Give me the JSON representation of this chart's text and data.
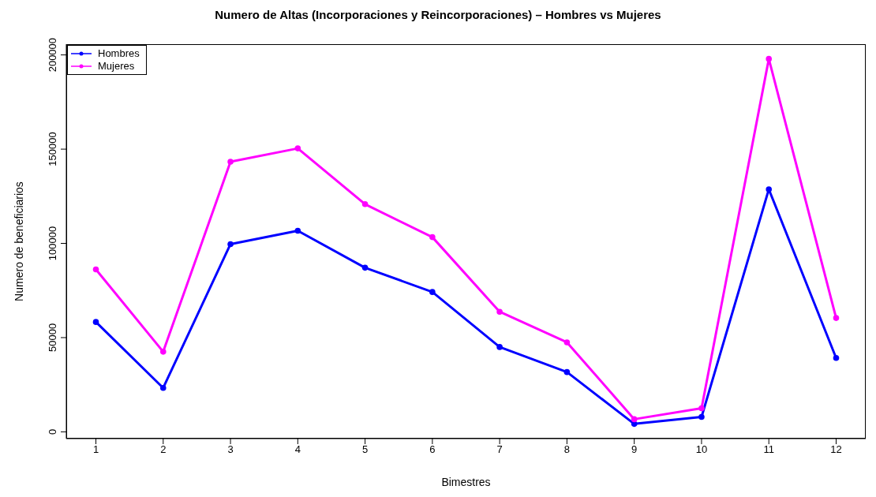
{
  "chart_data": {
    "type": "line",
    "title": "Numero de Altas (Incorporaciones y Reincorporaciones) –  Hombres vs Mujeres",
    "xlabel": "Bimestres",
    "ylabel": "Numero de beneficiarios",
    "x": [
      1,
      2,
      3,
      4,
      5,
      6,
      7,
      8,
      9,
      10,
      11,
      12
    ],
    "series": [
      {
        "name": "Hombres",
        "color": "#0000ff",
        "values": [
          58300,
          23300,
          99600,
          106700,
          87100,
          74200,
          45000,
          31700,
          4200,
          7900,
          128700,
          39200
        ]
      },
      {
        "name": "Mujeres",
        "color": "#ff00ff",
        "values": [
          86200,
          42500,
          143300,
          150400,
          120800,
          103300,
          63700,
          47500,
          6700,
          12500,
          197900,
          60400
        ]
      }
    ],
    "xlim": [
      0.56,
      12.44
    ],
    "xticks": [
      1,
      2,
      3,
      4,
      5,
      6,
      7,
      8,
      9,
      10,
      11,
      12
    ],
    "ylim": [
      -3600,
      205700
    ],
    "yticks": [
      0,
      50000,
      100000,
      150000,
      200000
    ],
    "legend": "top left",
    "marker": "circle",
    "line_style": "solid"
  }
}
